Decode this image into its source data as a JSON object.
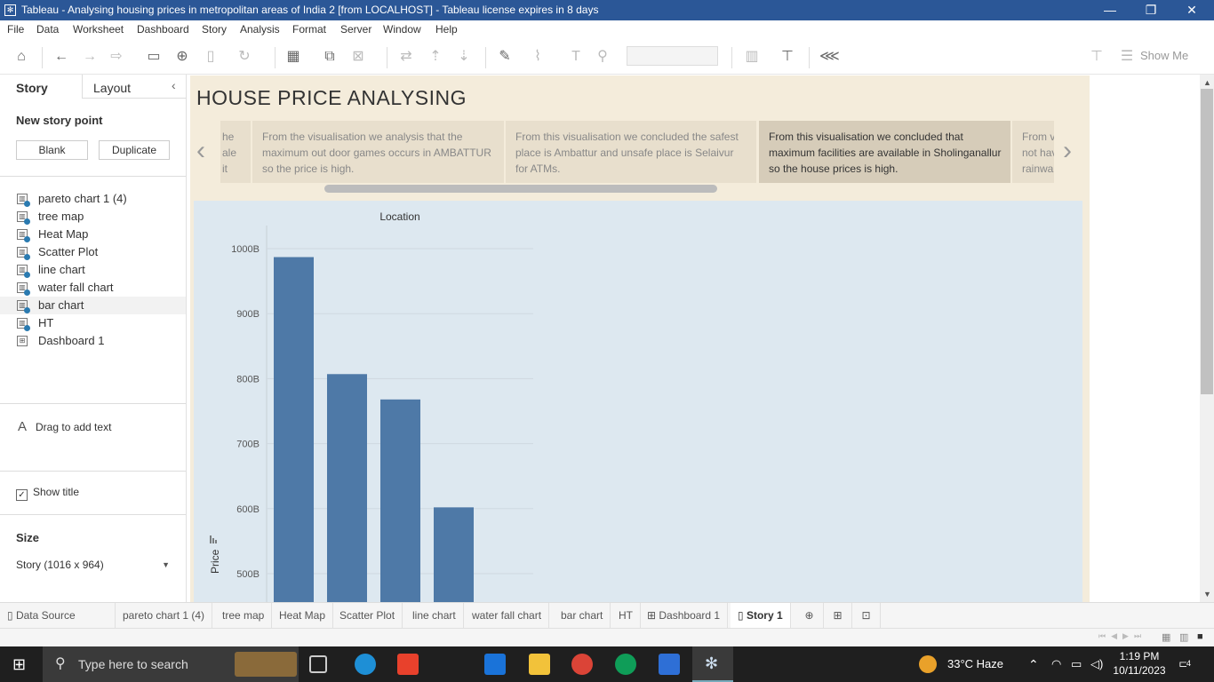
{
  "window": {
    "title": "Tableau - Analysing housing prices in metropolitan areas of India 2 [from LOCALHOST] - Tableau license expires in 8 days"
  },
  "menu": [
    "File",
    "Data",
    "Worksheet",
    "Dashboard",
    "Story",
    "Analysis",
    "Format",
    "Server",
    "Window",
    "Help"
  ],
  "toolbar": {
    "show_me": "Show Me"
  },
  "left_panel": {
    "tabs": [
      "Story",
      "Layout"
    ],
    "new_story_point": "New story point",
    "blank_button": "Blank",
    "duplicate_button": "Duplicate",
    "sheets": [
      "pareto chart 1 (4)",
      "tree map",
      "Heat Map",
      "Scatter Plot",
      "line chart",
      "water fall chart",
      "bar chart",
      "HT",
      "Dashboard 1"
    ],
    "selected_sheet": "bar chart",
    "drag_text": "Drag to add text",
    "show_title": "Show title",
    "size_label": "Size",
    "size_value": "Story (1016 x 964)"
  },
  "story": {
    "title": "HOUSE PRICE ANALYSING",
    "cards": [
      {
        "text": "he\nale\nit"
      },
      {
        "text": "From the visualisation we analysis that the maximum out door games occurs in AMBATTUR so the price is high."
      },
      {
        "text": "From this visualisation we concluded the safest place is Ambattur and unsafe place is Selaivur for ATMs."
      },
      {
        "text": "From this visualisation we concluded that maximum facilities are available in Sholinganallur so the house prices is high.",
        "active": true
      },
      {
        "text": "From v\nnot hav\nrainwa"
      }
    ]
  },
  "chart_data": {
    "type": "bar",
    "title": "Location",
    "xlabel": "",
    "ylabel": "Price",
    "yticks": [
      "1000B",
      "900B",
      "800B",
      "700B",
      "600B",
      "500B"
    ],
    "ylim": [
      460,
      1030
    ],
    "values": [
      987,
      807,
      768,
      602
    ],
    "bar_color": "#4e79a7"
  },
  "bottom_tabs": [
    "Data Source",
    "pareto chart 1 (4)",
    "tree map",
    "Heat Map",
    "Scatter Plot",
    "line chart",
    "water fall chart",
    "bar chart",
    "HT",
    "Dashboard 1",
    "Story 1"
  ],
  "active_tab": "Story 1",
  "taskbar": {
    "search_placeholder": "Type here to search",
    "weather": "33°C  Haze",
    "time": "1:19 PM",
    "date": "10/11/2023",
    "notification_count": "4"
  }
}
